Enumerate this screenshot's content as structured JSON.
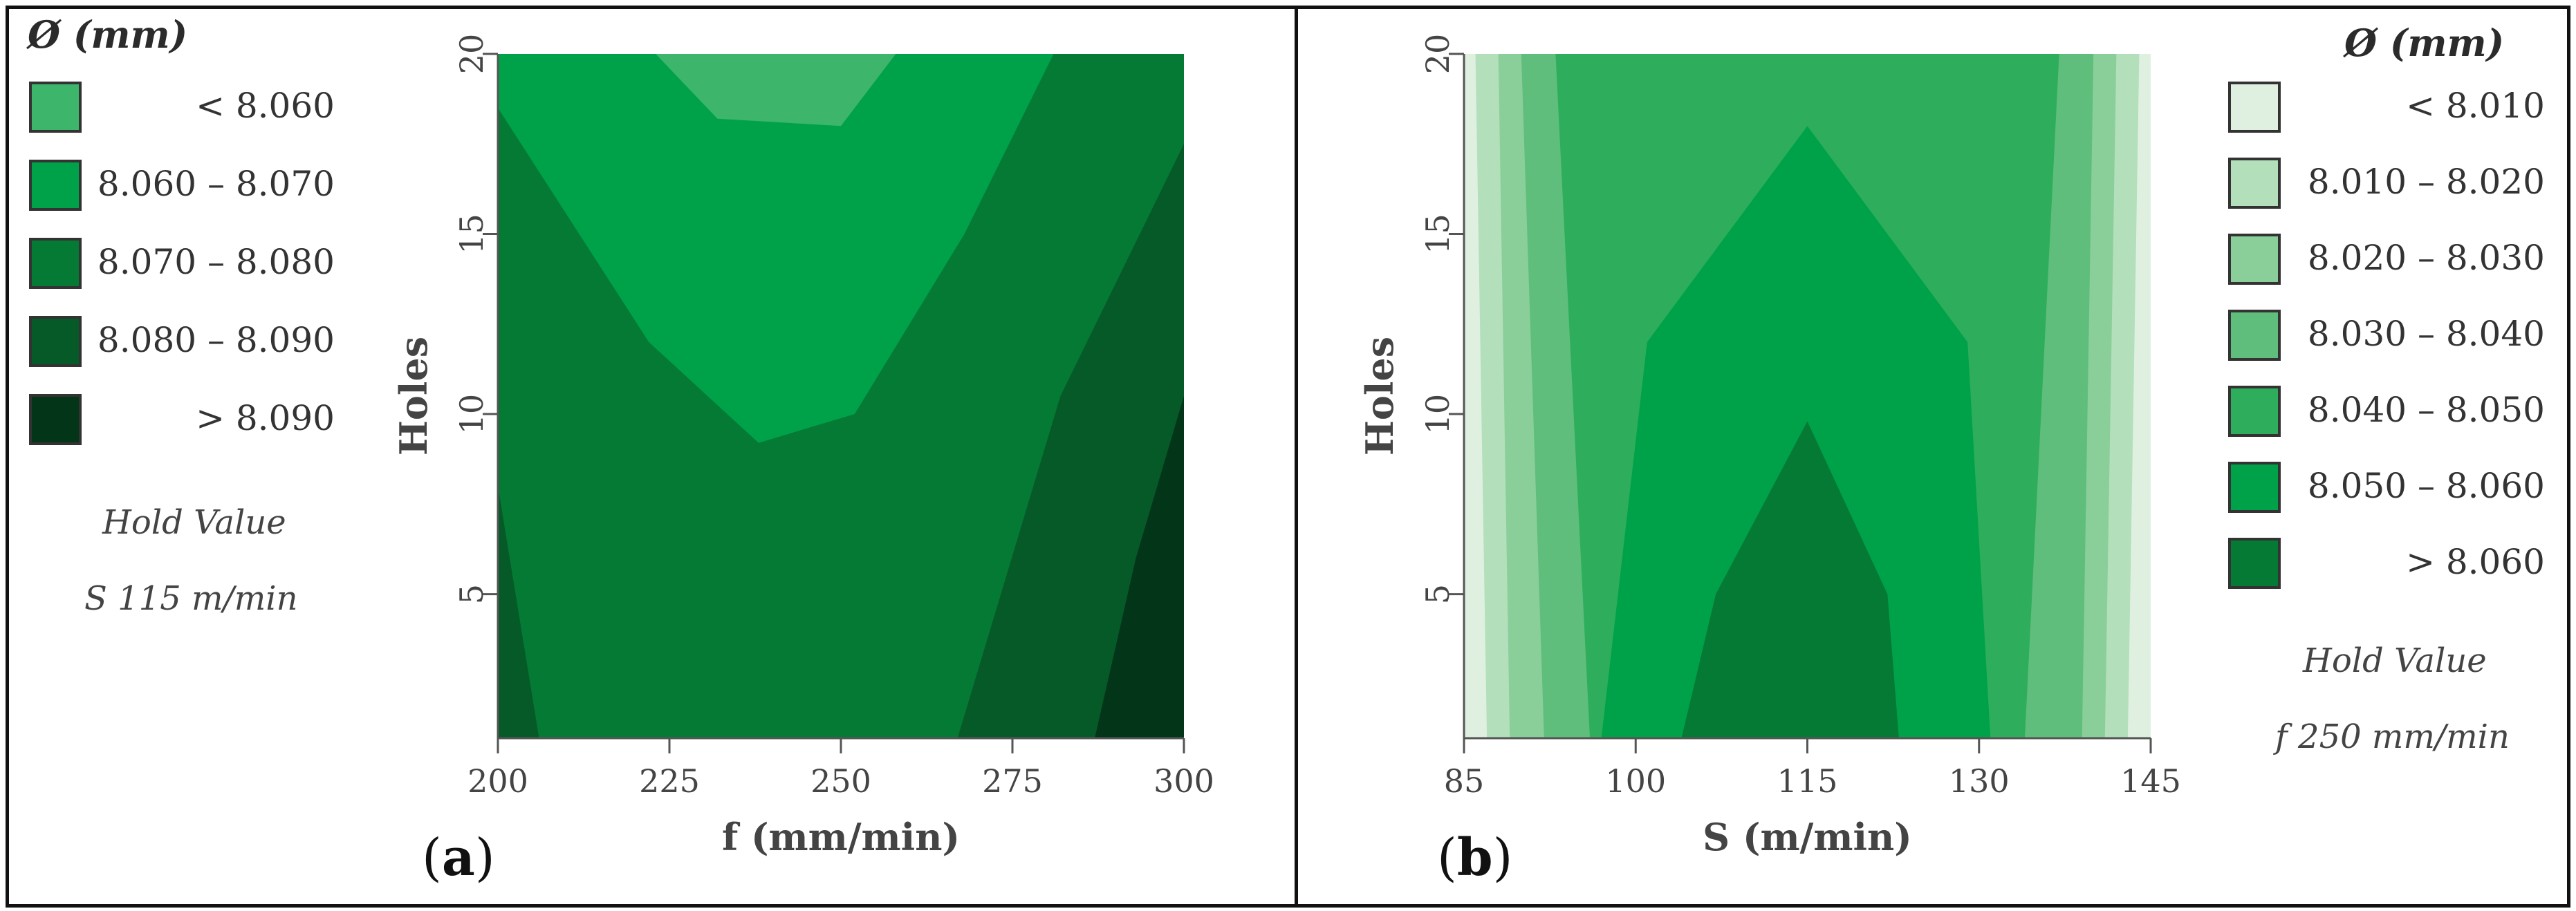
{
  "panels": {
    "a": {
      "letter": "a",
      "legend_title": "Ø (mm)",
      "legend": [
        {
          "label": "< 8.060",
          "color": "#3db56a"
        },
        {
          "label": "8.060 – 8.070",
          "color": "#00a249"
        },
        {
          "label": "8.070 – 8.080",
          "color": "#047a34"
        },
        {
          "label": "8.080 – 8.090",
          "color": "#055a28"
        },
        {
          "label": "> 8.090",
          "color": "#033519"
        }
      ],
      "hold_title": "Hold Value",
      "hold_value": "S 115 m/min"
    },
    "b": {
      "letter": "b",
      "legend_title": "Ø (mm)",
      "legend": [
        {
          "label": "< 8.010",
          "color": "#dff0e0"
        },
        {
          "label": "8.010 – 8.020",
          "color": "#b3dfbb"
        },
        {
          "label": "8.020 – 8.030",
          "color": "#8acf99"
        },
        {
          "label": "8.030 – 8.040",
          "color": "#5fbe7b"
        },
        {
          "label": "8.040 – 8.050",
          "color": "#2eae5c"
        },
        {
          "label": "8.050 – 8.060",
          "color": "#00a249"
        },
        {
          "label": "> 8.060",
          "color": "#047a34"
        }
      ],
      "hold_title": "Hold Value",
      "hold_value": "f 250 mm/min"
    }
  },
  "chart_data": [
    {
      "type": "contour",
      "xlabel": "f (mm/min)",
      "ylabel": "Holes",
      "xlim": [
        200,
        300
      ],
      "ylim": [
        1,
        20
      ],
      "xticks": [
        "200",
        "225",
        "250",
        "275",
        "300"
      ],
      "yticks": [
        "5",
        "10",
        "15",
        "20"
      ],
      "x_values": [
        200,
        225,
        250,
        275,
        300
      ],
      "y_values": [
        5,
        10,
        15,
        20
      ],
      "contours": [
        {
          "level": "8.070 – 8.080",
          "points": [
            [
              200,
              20
            ],
            [
              200,
              5
            ],
            [
              206,
              1
            ],
            [
              267,
              1
            ],
            [
              278,
              10
            ],
            [
              300,
              18.5
            ],
            [
              300,
              20
            ]
          ]
        },
        {
          "level": "8.060 – 8.070",
          "points": [
            [
              200,
              20
            ],
            [
              200,
              18.5
            ],
            [
              222,
              12
            ],
            [
              238,
              9.2
            ],
            [
              252,
              10
            ],
            [
              268,
              15
            ],
            [
              281,
              20
            ]
          ]
        },
        {
          "level": "< 8.060",
          "points": [
            [
              223,
              20
            ],
            [
              232,
              18.2
            ],
            [
              250,
              18
            ],
            [
              258,
              20
            ]
          ]
        },
        {
          "level": "8.080 – 8.090",
          "points": [
            [
              267,
              1
            ],
            [
              287,
              1
            ],
            [
              300,
              10.5
            ],
            [
              300,
              17.5
            ],
            [
              282,
              10.5
            ]
          ]
        },
        {
          "level": "8.080 – 8.090",
          "points": [
            [
              200,
              1
            ],
            [
              200,
              8
            ],
            [
              206,
              1
            ]
          ]
        },
        {
          "level": "> 8.090",
          "points": [
            [
              287,
              1
            ],
            [
              300,
              1
            ],
            [
              300,
              10.5
            ],
            [
              293,
              6
            ]
          ]
        }
      ]
    },
    {
      "type": "contour",
      "xlabel": "S (m/min)",
      "ylabel": "Holes",
      "xlim": [
        85,
        145
      ],
      "ylim": [
        1,
        20
      ],
      "xticks": [
        "85",
        "100",
        "115",
        "130",
        "145"
      ],
      "yticks": [
        "5",
        "10",
        "15",
        "20"
      ],
      "x_values": [
        85,
        100,
        115,
        130,
        145
      ],
      "y_values": [
        5,
        10,
        15,
        20
      ],
      "contours": [
        {
          "level": "8.010 – 8.020",
          "points": [
            [
              86,
              20
            ],
            [
              87,
              1
            ],
            [
              143,
              1
            ],
            [
              144,
              20
            ]
          ]
        },
        {
          "level": "8.020 – 8.030",
          "points": [
            [
              88,
              20
            ],
            [
              89,
              1
            ],
            [
              141,
              1
            ],
            [
              142,
              20
            ]
          ]
        },
        {
          "level": "8.030 – 8.040",
          "points": [
            [
              90,
              20
            ],
            [
              92,
              1
            ],
            [
              139,
              1
            ],
            [
              140,
              20
            ]
          ]
        },
        {
          "level": "8.040 – 8.050",
          "points": [
            [
              93,
              20
            ],
            [
              96,
              1
            ],
            [
              134,
              1
            ],
            [
              137,
              20
            ]
          ]
        },
        {
          "level": "8.050 – 8.060",
          "points": [
            [
              97,
              1
            ],
            [
              101,
              12
            ],
            [
              115,
              18
            ],
            [
              129,
              12
            ],
            [
              131,
              1
            ]
          ]
        },
        {
          "level": "> 8.060",
          "points": [
            [
              104,
              1
            ],
            [
              107,
              5
            ],
            [
              115,
              9.8
            ],
            [
              122,
              5
            ],
            [
              123,
              1
            ]
          ]
        }
      ]
    }
  ]
}
